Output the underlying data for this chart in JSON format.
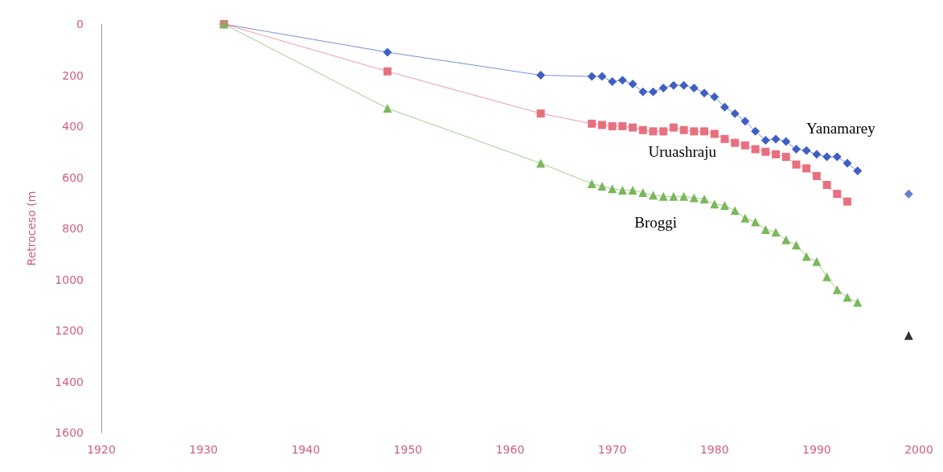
{
  "chart_data": {
    "type": "line",
    "ylabel": "Retroceso (m",
    "xlim": [
      1920,
      2000
    ],
    "xticks": [
      1920,
      1930,
      1940,
      1950,
      1960,
      1970,
      1980,
      1990,
      2000
    ],
    "ylim": [
      1600,
      0
    ],
    "yticks": [
      0,
      200,
      400,
      600,
      800,
      1000,
      1200,
      1400,
      1600
    ],
    "grid": false,
    "legend": false,
    "series": [
      {
        "name": "Yanamarey",
        "color": "#3f5fc4",
        "marker": "diamond",
        "x": [
          1932,
          1948,
          1963,
          1968,
          1969,
          1970,
          1971,
          1972,
          1973,
          1974,
          1975,
          1976,
          1977,
          1978,
          1979,
          1980,
          1981,
          1982,
          1983,
          1984,
          1985,
          1986,
          1987,
          1988,
          1989,
          1990,
          1991,
          1992,
          1993,
          1994
        ],
        "values": [
          0,
          110,
          200,
          205,
          205,
          225,
          220,
          235,
          265,
          265,
          250,
          240,
          240,
          250,
          270,
          285,
          325,
          350,
          380,
          420,
          455,
          450,
          460,
          490,
          495,
          510,
          520,
          520,
          545,
          575
        ]
      },
      {
        "name": "Uruashraju",
        "color": "#e8707e",
        "marker": "square",
        "x": [
          1932,
          1948,
          1963,
          1968,
          1969,
          1970,
          1971,
          1972,
          1973,
          1974,
          1975,
          1976,
          1977,
          1978,
          1979,
          1980,
          1981,
          1982,
          1983,
          1984,
          1985,
          1986,
          1987,
          1988,
          1989,
          1990,
          1991,
          1992,
          1993
        ],
        "values": [
          0,
          185,
          350,
          390,
          395,
          400,
          400,
          405,
          415,
          420,
          420,
          405,
          415,
          420,
          420,
          430,
          450,
          465,
          475,
          490,
          500,
          510,
          520,
          550,
          565,
          595,
          630,
          665,
          695
        ]
      },
      {
        "name": "Broggi",
        "color": "#7ab85a",
        "marker": "triangle",
        "x": [
          1932,
          1948,
          1963,
          1968,
          1969,
          1970,
          1971,
          1972,
          1973,
          1974,
          1975,
          1976,
          1977,
          1978,
          1979,
          1980,
          1981,
          1982,
          1983,
          1984,
          1985,
          1986,
          1987,
          1988,
          1989,
          1990,
          1991,
          1992,
          1993,
          1994
        ],
        "values": [
          0,
          330,
          545,
          625,
          635,
          645,
          650,
          650,
          660,
          670,
          675,
          675,
          675,
          680,
          685,
          705,
          710,
          730,
          760,
          775,
          805,
          815,
          845,
          865,
          910,
          930,
          990,
          1040,
          1070,
          1090
        ]
      },
      {
        "type": "scatter",
        "color": "#3f5fc4",
        "marker": "diamond",
        "x": [
          1999
        ],
        "values": [
          665
        ]
      },
      {
        "type": "scatter",
        "color": "#000000",
        "marker": "triangle",
        "x": [
          1999
        ],
        "values": [
          1220
        ]
      }
    ]
  }
}
